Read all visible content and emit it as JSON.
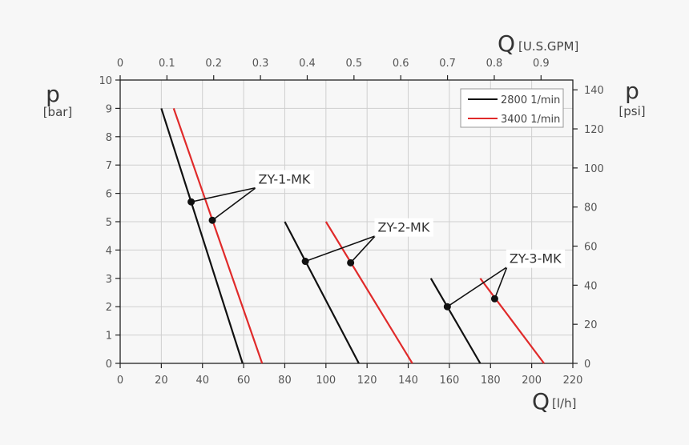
{
  "chart_data": {
    "type": "line",
    "x_axis": {
      "symbol": "Q",
      "unit": "[l/h]",
      "range": [
        0,
        220
      ],
      "ticks": [
        0,
        20,
        40,
        60,
        80,
        100,
        120,
        140,
        160,
        180,
        200,
        220
      ]
    },
    "x2_axis": {
      "symbol": "Q",
      "unit": "[U.S.GPM]",
      "range": [
        0,
        0.968
      ],
      "ticks": [
        "0",
        "0.1",
        "0.2",
        "0.3",
        "0.4",
        "0.5",
        "0.6",
        "0.7",
        "0.8",
        "0.9"
      ]
    },
    "y_axis": {
      "symbol": "p",
      "unit": "[bar]",
      "range": [
        0,
        10
      ],
      "ticks": [
        0,
        1,
        2,
        3,
        4,
        5,
        6,
        7,
        8,
        9,
        10
      ]
    },
    "y2_axis": {
      "symbol": "p",
      "unit": "[psi]",
      "range": [
        0,
        145
      ],
      "ticks": [
        0,
        20,
        40,
        60,
        80,
        100,
        120,
        140
      ]
    },
    "grid": true,
    "legend": {
      "position": "top-right",
      "entries": [
        {
          "label": "2800 1/min",
          "color": "#111111"
        },
        {
          "label": "3400 1/min",
          "color": "#e02a2a"
        }
      ]
    },
    "series": [
      {
        "legend": 0,
        "color": "#111111",
        "points": [
          [
            20,
            9
          ],
          [
            59.5,
            0
          ]
        ]
      },
      {
        "legend": 1,
        "color": "#e02a2a",
        "points": [
          [
            26,
            9
          ],
          [
            69,
            0
          ]
        ]
      },
      {
        "legend": 0,
        "color": "#111111",
        "points": [
          [
            80,
            5
          ],
          [
            116,
            0
          ]
        ]
      },
      {
        "legend": 1,
        "color": "#e02a2a",
        "points": [
          [
            100,
            5
          ],
          [
            142,
            0
          ]
        ]
      },
      {
        "legend": 0,
        "color": "#111111",
        "points": [
          [
            151,
            3
          ],
          [
            175,
            0
          ]
        ]
      },
      {
        "legend": 1,
        "color": "#e02a2a",
        "points": [
          [
            175,
            3
          ],
          [
            206,
            0
          ]
        ]
      }
    ],
    "annotations": [
      {
        "text": "ZY-1-MK",
        "anchor": [
          66,
          6.2
        ],
        "points": [
          [
            34.5,
            5.7
          ],
          [
            44.8,
            5.05
          ]
        ]
      },
      {
        "text": "ZY-2-MK",
        "anchor": [
          124,
          4.5
        ],
        "points": [
          [
            90,
            3.6
          ],
          [
            112,
            3.55
          ]
        ]
      },
      {
        "text": "ZY-3-MK",
        "anchor": [
          188,
          3.4
        ],
        "points": [
          [
            159,
            2.0
          ],
          [
            182,
            2.28
          ]
        ]
      }
    ]
  }
}
